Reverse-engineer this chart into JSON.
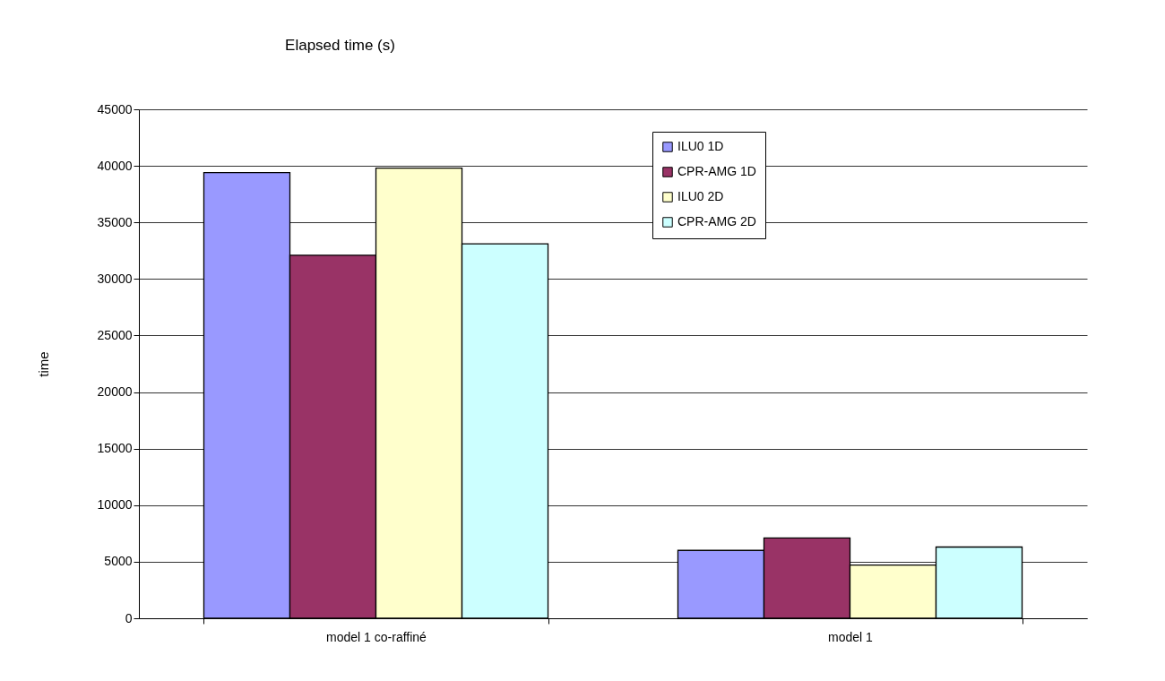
{
  "chart_data": {
    "type": "bar",
    "title": "Elapsed time (s)",
    "ylabel": "time",
    "categories": [
      "model 1 co-raffiné",
      "model 1"
    ],
    "series": [
      {
        "name": "ILU0 1D",
        "color": "#9999ff",
        "values": [
          39400,
          6000
        ]
      },
      {
        "name": "CPR-AMG 1D",
        "color": "#993366",
        "values": [
          32100,
          7100
        ]
      },
      {
        "name": "ILU0 2D",
        "color": "#ffffcc",
        "values": [
          39800,
          4700
        ]
      },
      {
        "name": "CPR-AMG 2D",
        "color": "#ccffff",
        "values": [
          33100,
          6300
        ]
      }
    ],
    "ylim": [
      0,
      45000
    ],
    "yticks": [
      0,
      5000,
      10000,
      15000,
      20000,
      25000,
      30000,
      35000,
      40000,
      45000
    ],
    "grid": "y",
    "legend": "top right"
  }
}
